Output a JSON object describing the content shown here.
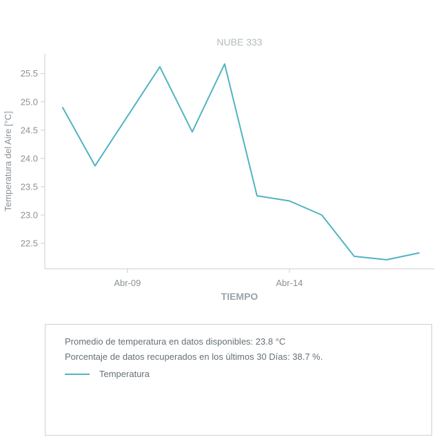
{
  "chart_data": {
    "type": "line",
    "title": "NUBE 333",
    "xlabel": "TIEMPO",
    "ylabel": "Temperatura del Aire [°C]",
    "axis_color": "#cccccc",
    "grid": false,
    "legend_position": "below-in-summary-box",
    "y_axis": {
      "ticks": [
        22.5,
        23.0,
        23.5,
        24.0,
        24.5,
        25.0,
        25.5
      ],
      "range": [
        22.05,
        25.85
      ]
    },
    "x_axis": {
      "ticks": [
        {
          "label": "Abr-09",
          "day": 9
        },
        {
          "label": "Abr-14",
          "day": 14
        }
      ],
      "day_range": [
        6.45,
        18.47
      ]
    },
    "series": [
      {
        "name": "Temperatura",
        "color": "#4fb3c1",
        "points": [
          {
            "x": "Abr-07",
            "y": 24.9
          },
          {
            "x": "Abr-08",
            "y": 23.87
          },
          {
            "x": "Abr-10",
            "y": 25.62
          },
          {
            "x": "Abr-11",
            "y": 24.47
          },
          {
            "x": "Abr-12",
            "y": 25.67
          },
          {
            "x": "Abr-13",
            "y": 23.34
          },
          {
            "x": "Abr-14",
            "y": 23.25
          },
          {
            "x": "Abr-15",
            "y": 23.0
          },
          {
            "x": "Abr-16",
            "y": 22.27
          },
          {
            "x": "Abr-17",
            "y": 22.21
          },
          {
            "x": "Abr-18",
            "y": 22.33
          }
        ]
      }
    ]
  },
  "summary": {
    "average_line": "Promedio de temperatura en datos disponibles: 23.8 °C",
    "recovered_line": "Porcentaje de datos recuperados en los últimos 30 Días: 38.7 %."
  },
  "legend": {
    "label": "Temperatura",
    "color": "#4fb3c1"
  }
}
